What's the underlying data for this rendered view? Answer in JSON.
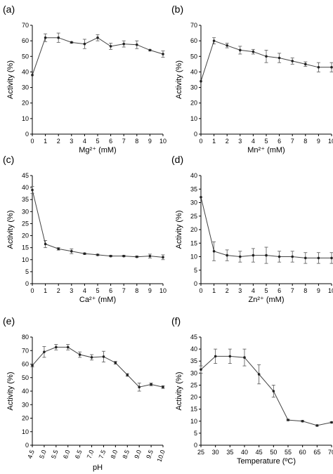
{
  "chart_data": [
    {
      "panel": "(a)",
      "type": "line",
      "xlabel": "Mg²⁺ (mM)",
      "ylabel": "Activity (%)",
      "x": [
        0,
        1,
        2,
        3,
        4,
        5,
        6,
        7,
        8,
        9,
        10
      ],
      "y": [
        38,
        62,
        62,
        59,
        58,
        62,
        56.5,
        58,
        57.5,
        54,
        51.5
      ],
      "err": [
        0,
        2.5,
        3,
        0.5,
        3,
        2,
        2,
        2,
        2.5,
        0.5,
        2
      ],
      "xlim": [
        0,
        10
      ],
      "ylim": [
        0,
        70
      ],
      "xticks": [
        "0",
        "1",
        "2",
        "3",
        "4",
        "5",
        "6",
        "7",
        "8",
        "9",
        "10"
      ],
      "yticks": [
        "0",
        "10",
        "20",
        "30",
        "40",
        "50",
        "60",
        "70"
      ]
    },
    {
      "panel": "(b)",
      "type": "line",
      "xlabel": "Mn²⁺ (mM)",
      "ylabel": "Activity (%)",
      "x": [
        0,
        1,
        2,
        3,
        4,
        5,
        6,
        7,
        8,
        9,
        10
      ],
      "y": [
        34,
        60,
        57,
        54,
        53,
        50,
        49,
        47,
        45,
        43,
        43
      ],
      "err": [
        0,
        2,
        1.5,
        2.5,
        1.5,
        4,
        3,
        2,
        1.5,
        3,
        3
      ],
      "xlim": [
        0,
        10
      ],
      "ylim": [
        0,
        70
      ],
      "xticks": [
        "0",
        "1",
        "2",
        "3",
        "4",
        "5",
        "6",
        "7",
        "8",
        "9",
        "10"
      ],
      "yticks": [
        "0",
        "10",
        "20",
        "30",
        "40",
        "50",
        "60",
        "70"
      ]
    },
    {
      "panel": "(c)",
      "type": "line",
      "xlabel": "Ca²⁺ (mM)",
      "ylabel": "Activity (%)",
      "x": [
        0,
        1,
        2,
        3,
        4,
        5,
        6,
        7,
        8,
        9,
        10
      ],
      "y": [
        39,
        16.5,
        14.5,
        13.5,
        12.5,
        12,
        11.5,
        11.5,
        11.2,
        11.5,
        11
      ],
      "err": [
        1.5,
        1.5,
        0.5,
        1,
        0.3,
        0.3,
        0.3,
        0.3,
        0.3,
        0.8,
        1
      ],
      "xlim": [
        0,
        10
      ],
      "ylim": [
        0,
        45
      ],
      "xticks": [
        "0",
        "1",
        "2",
        "3",
        "4",
        "5",
        "6",
        "7",
        "8",
        "9",
        "10"
      ],
      "yticks": [
        "0",
        "5",
        "10",
        "15",
        "20",
        "25",
        "30",
        "35",
        "40",
        "45"
      ]
    },
    {
      "panel": "(d)",
      "type": "line",
      "xlabel": "Zn²⁺ (mM)",
      "ylabel": "Activity (%)",
      "x": [
        0,
        1,
        2,
        3,
        4,
        5,
        6,
        7,
        8,
        9,
        10
      ],
      "y": [
        32,
        12,
        10.5,
        10,
        10.5,
        10.5,
        10,
        10,
        9.5,
        9.5,
        9.5
      ],
      "err": [
        0,
        3.5,
        2,
        2,
        2.5,
        3,
        2,
        2,
        2,
        2,
        2
      ],
      "xlim": [
        0,
        10
      ],
      "ylim": [
        0,
        40
      ],
      "xticks": [
        "0",
        "1",
        "2",
        "3",
        "4",
        "5",
        "6",
        "7",
        "8",
        "9",
        "10"
      ],
      "yticks": [
        "0",
        "5",
        "10",
        "15",
        "20",
        "25",
        "30",
        "35",
        "40"
      ]
    },
    {
      "panel": "(e)",
      "type": "line",
      "xlabel": "pH",
      "ylabel": "Activity (%)",
      "x": [
        4.5,
        5.0,
        5.5,
        6.0,
        6.5,
        7.0,
        7.5,
        8.0,
        8.5,
        9.0,
        9.5,
        10.0
      ],
      "y": [
        59,
        69,
        72.5,
        72.5,
        67,
        65,
        65.5,
        61,
        52,
        43,
        45,
        43
      ],
      "err": [
        1,
        4,
        2,
        2,
        2,
        2,
        4,
        1,
        1,
        3,
        1,
        1
      ],
      "xlim": [
        4.5,
        10.0
      ],
      "ylim": [
        0,
        80
      ],
      "xticks": [
        "4.5",
        "5.0",
        "5.5",
        "6.0",
        "6.5",
        "7.0",
        "7.5",
        "8.0",
        "8.5",
        "9.0",
        "9.5",
        "10.0"
      ],
      "yticks": [
        "0",
        "10",
        "20",
        "30",
        "40",
        "50",
        "60",
        "70",
        "80"
      ],
      "rotated_xticks": true
    },
    {
      "panel": "(f)",
      "type": "line",
      "xlabel": "Temperature (ºC)",
      "ylabel": "Activity (%)",
      "x": [
        25,
        30,
        35,
        40,
        45,
        50,
        55,
        60,
        65,
        70
      ],
      "y": [
        31.5,
        37,
        37,
        36.5,
        29.5,
        22.5,
        10.5,
        10,
        8.2,
        9.5
      ],
      "err": [
        1.5,
        3,
        3,
        3.5,
        4,
        2.5,
        0.3,
        0.3,
        0.3,
        0.3
      ],
      "xlim": [
        25,
        70
      ],
      "ylim": [
        0,
        45
      ],
      "xticks": [
        "25",
        "30",
        "35",
        "40",
        "45",
        "50",
        "55",
        "60",
        "65",
        "70"
      ],
      "yticks": [
        "0",
        "5",
        "10",
        "15",
        "20",
        "25",
        "30",
        "35",
        "40",
        "45"
      ]
    }
  ]
}
